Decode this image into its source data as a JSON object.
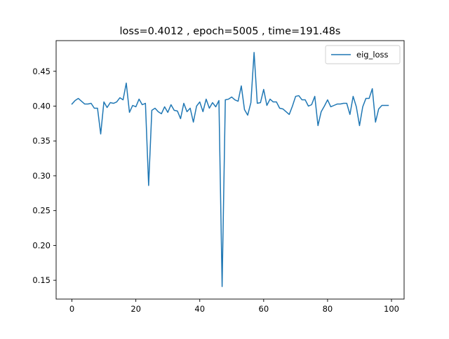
{
  "chart_data": {
    "type": "line",
    "title": "loss=0.4012 , epoch=5005 , time=191.48s",
    "xlabel": "",
    "ylabel": "",
    "xlim": [
      -4.95,
      103.95
    ],
    "ylim": [
      0.123,
      0.494
    ],
    "xticks": [
      0,
      20,
      40,
      60,
      80,
      100
    ],
    "yticks": [
      0.15,
      0.2,
      0.25,
      0.3,
      0.35,
      0.4,
      0.45
    ],
    "ytick_labels": [
      "0.15",
      "0.20",
      "0.25",
      "0.30",
      "0.35",
      "0.40",
      "0.45"
    ],
    "grid": false,
    "legend_position": "upper right",
    "series": [
      {
        "name": "eig_loss",
        "color": "#1f77b4",
        "x": [
          0,
          1,
          2,
          3,
          4,
          5,
          6,
          7,
          8,
          9,
          10,
          11,
          12,
          13,
          14,
          15,
          16,
          17,
          18,
          19,
          20,
          21,
          22,
          23,
          24,
          25,
          26,
          27,
          28,
          29,
          30,
          31,
          32,
          33,
          34,
          35,
          36,
          37,
          38,
          39,
          40,
          41,
          42,
          43,
          44,
          45,
          46,
          47,
          48,
          49,
          50,
          51,
          52,
          53,
          54,
          55,
          56,
          57,
          58,
          59,
          60,
          61,
          62,
          63,
          64,
          65,
          66,
          67,
          68,
          69,
          70,
          71,
          72,
          73,
          74,
          75,
          76,
          77,
          78,
          79,
          80,
          81,
          82,
          83,
          84,
          85,
          86,
          87,
          88,
          89,
          90,
          91,
          92,
          93,
          94,
          95,
          96,
          97,
          98,
          99
        ],
        "y": [
          0.403,
          0.408,
          0.411,
          0.407,
          0.403,
          0.403,
          0.404,
          0.397,
          0.397,
          0.36,
          0.406,
          0.398,
          0.405,
          0.404,
          0.406,
          0.412,
          0.409,
          0.433,
          0.391,
          0.401,
          0.399,
          0.41,
          0.402,
          0.404,
          0.286,
          0.394,
          0.397,
          0.392,
          0.389,
          0.399,
          0.391,
          0.402,
          0.394,
          0.393,
          0.382,
          0.404,
          0.392,
          0.397,
          0.377,
          0.4,
          0.406,
          0.392,
          0.41,
          0.397,
          0.405,
          0.399,
          0.408,
          0.141,
          0.409,
          0.41,
          0.413,
          0.409,
          0.407,
          0.429,
          0.395,
          0.387,
          0.405,
          0.477,
          0.404,
          0.405,
          0.424,
          0.401,
          0.41,
          0.406,
          0.406,
          0.397,
          0.396,
          0.392,
          0.388,
          0.4,
          0.414,
          0.415,
          0.409,
          0.409,
          0.4,
          0.402,
          0.414,
          0.372,
          0.392,
          0.4,
          0.409,
          0.399,
          0.401,
          0.403,
          0.403,
          0.404,
          0.404,
          0.388,
          0.414,
          0.399,
          0.372,
          0.399,
          0.411,
          0.411,
          0.425,
          0.377,
          0.396,
          0.401,
          0.401,
          0.401
        ]
      }
    ]
  }
}
